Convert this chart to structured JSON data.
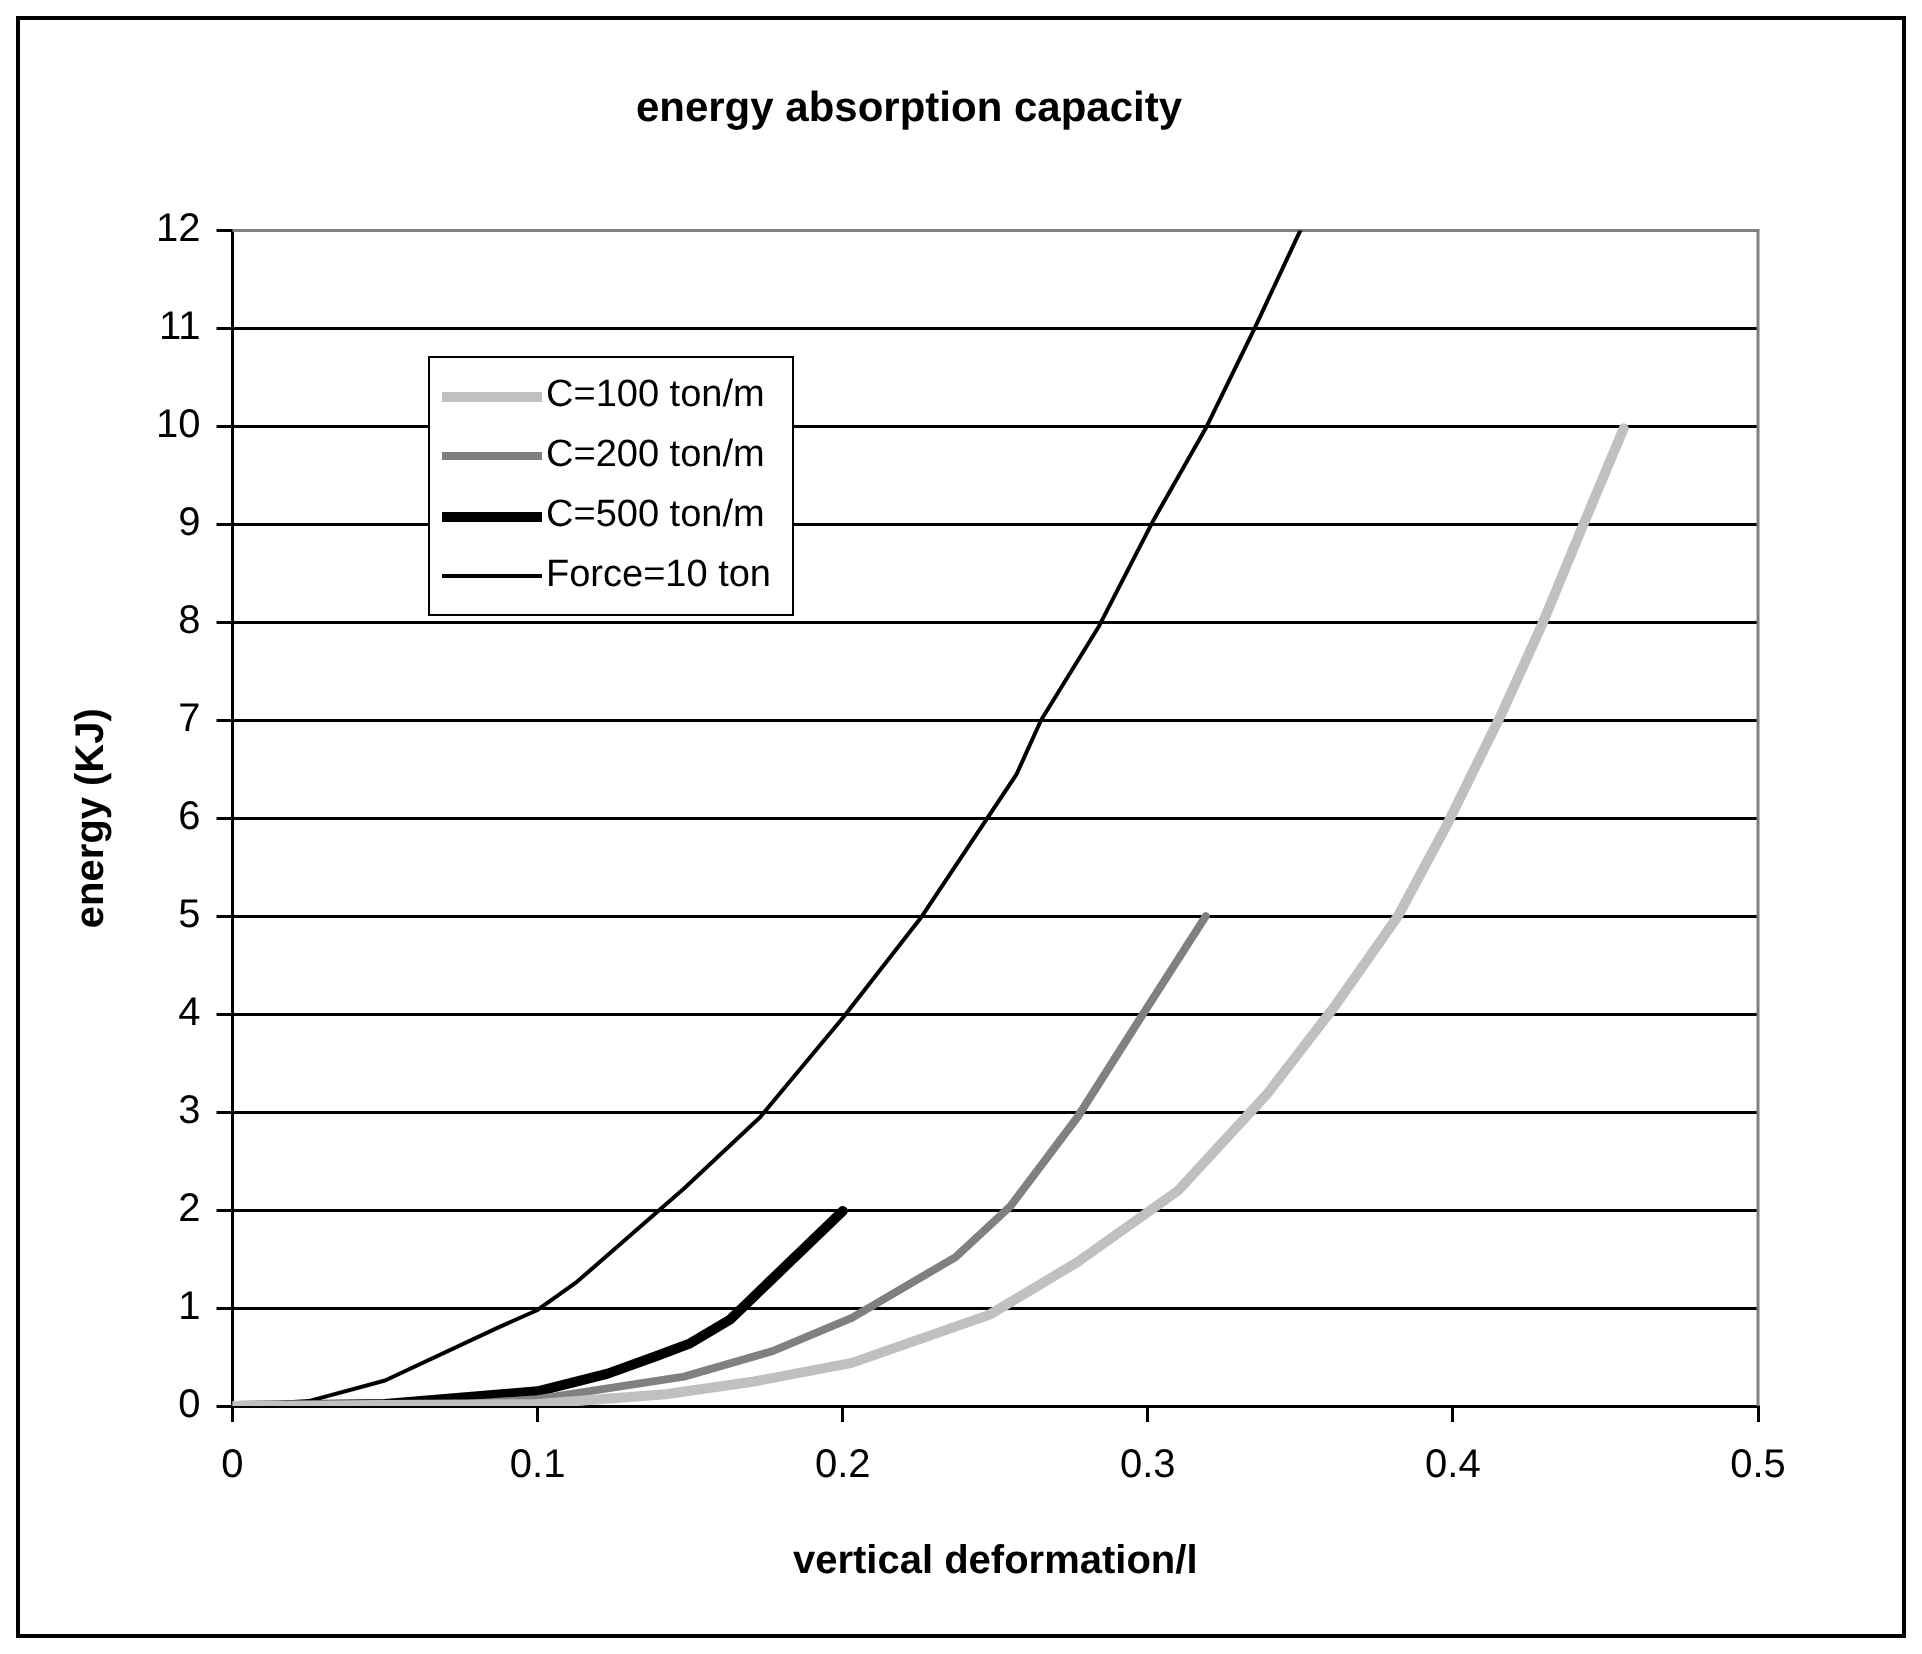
{
  "chart_data": {
    "type": "line",
    "title": "energy absorption capacity",
    "xlabel": "vertical deformation/l",
    "ylabel": "energy (KJ)",
    "xlim": [
      0,
      0.5
    ],
    "xticks": [
      0,
      0.1,
      0.2,
      0.3,
      0.4,
      0.5
    ],
    "ylim": [
      0,
      12
    ],
    "yticks": [
      0,
      1,
      2,
      3,
      4,
      5,
      6,
      7,
      8,
      9,
      10,
      11,
      12
    ],
    "grid": "y",
    "legend": "top left",
    "series": [
      {
        "name": "C=100 ton/m",
        "color": "#c0c0c0",
        "x": [
          0,
          0.1,
          0.142,
          0.171,
          0.203,
          0.248,
          0.277,
          0.31,
          0.339,
          0.361,
          0.382,
          0.398,
          0.416,
          0.429,
          0.442,
          0.456
        ],
        "values": [
          0,
          0.02,
          0.12,
          0.25,
          0.44,
          0.93,
          1.47,
          2.2,
          3.18,
          4.07,
          5,
          5.93,
          7.07,
          7.96,
          8.94,
          9.98
        ]
      },
      {
        "name": "C=200 ton/m",
        "color": "#808080",
        "x": [
          0,
          0.077,
          0.1,
          0.148,
          0.177,
          0.203,
          0.237,
          0.255,
          0.277,
          0.298,
          0.319
        ],
        "values": [
          0,
          0.02,
          0.07,
          0.3,
          0.56,
          0.9,
          1.52,
          2.04,
          2.95,
          3.98,
          5
        ]
      },
      {
        "name": "C=500 ton/m",
        "color": "#000000",
        "x": [
          0,
          0.05,
          0.1,
          0.123,
          0.139,
          0.15,
          0.163,
          0.2
        ],
        "values": [
          0,
          0.02,
          0.15,
          0.33,
          0.51,
          0.64,
          0.88,
          1.99
        ]
      },
      {
        "name": "Force=10 ton",
        "color": "#000000",
        "x": [
          0,
          0.025,
          0.05,
          0.087,
          0.1,
          0.113,
          0.148,
          0.173,
          0.2,
          0.226,
          0.257,
          0.265,
          0.284,
          0.302,
          0.319,
          0.335,
          0.35
        ],
        "values": [
          0,
          0.05,
          0.26,
          0.8,
          0.98,
          1.27,
          2.22,
          2.95,
          3.96,
          5,
          6.45,
          7,
          7.96,
          9.05,
          9.98,
          11,
          12
        ]
      }
    ]
  }
}
